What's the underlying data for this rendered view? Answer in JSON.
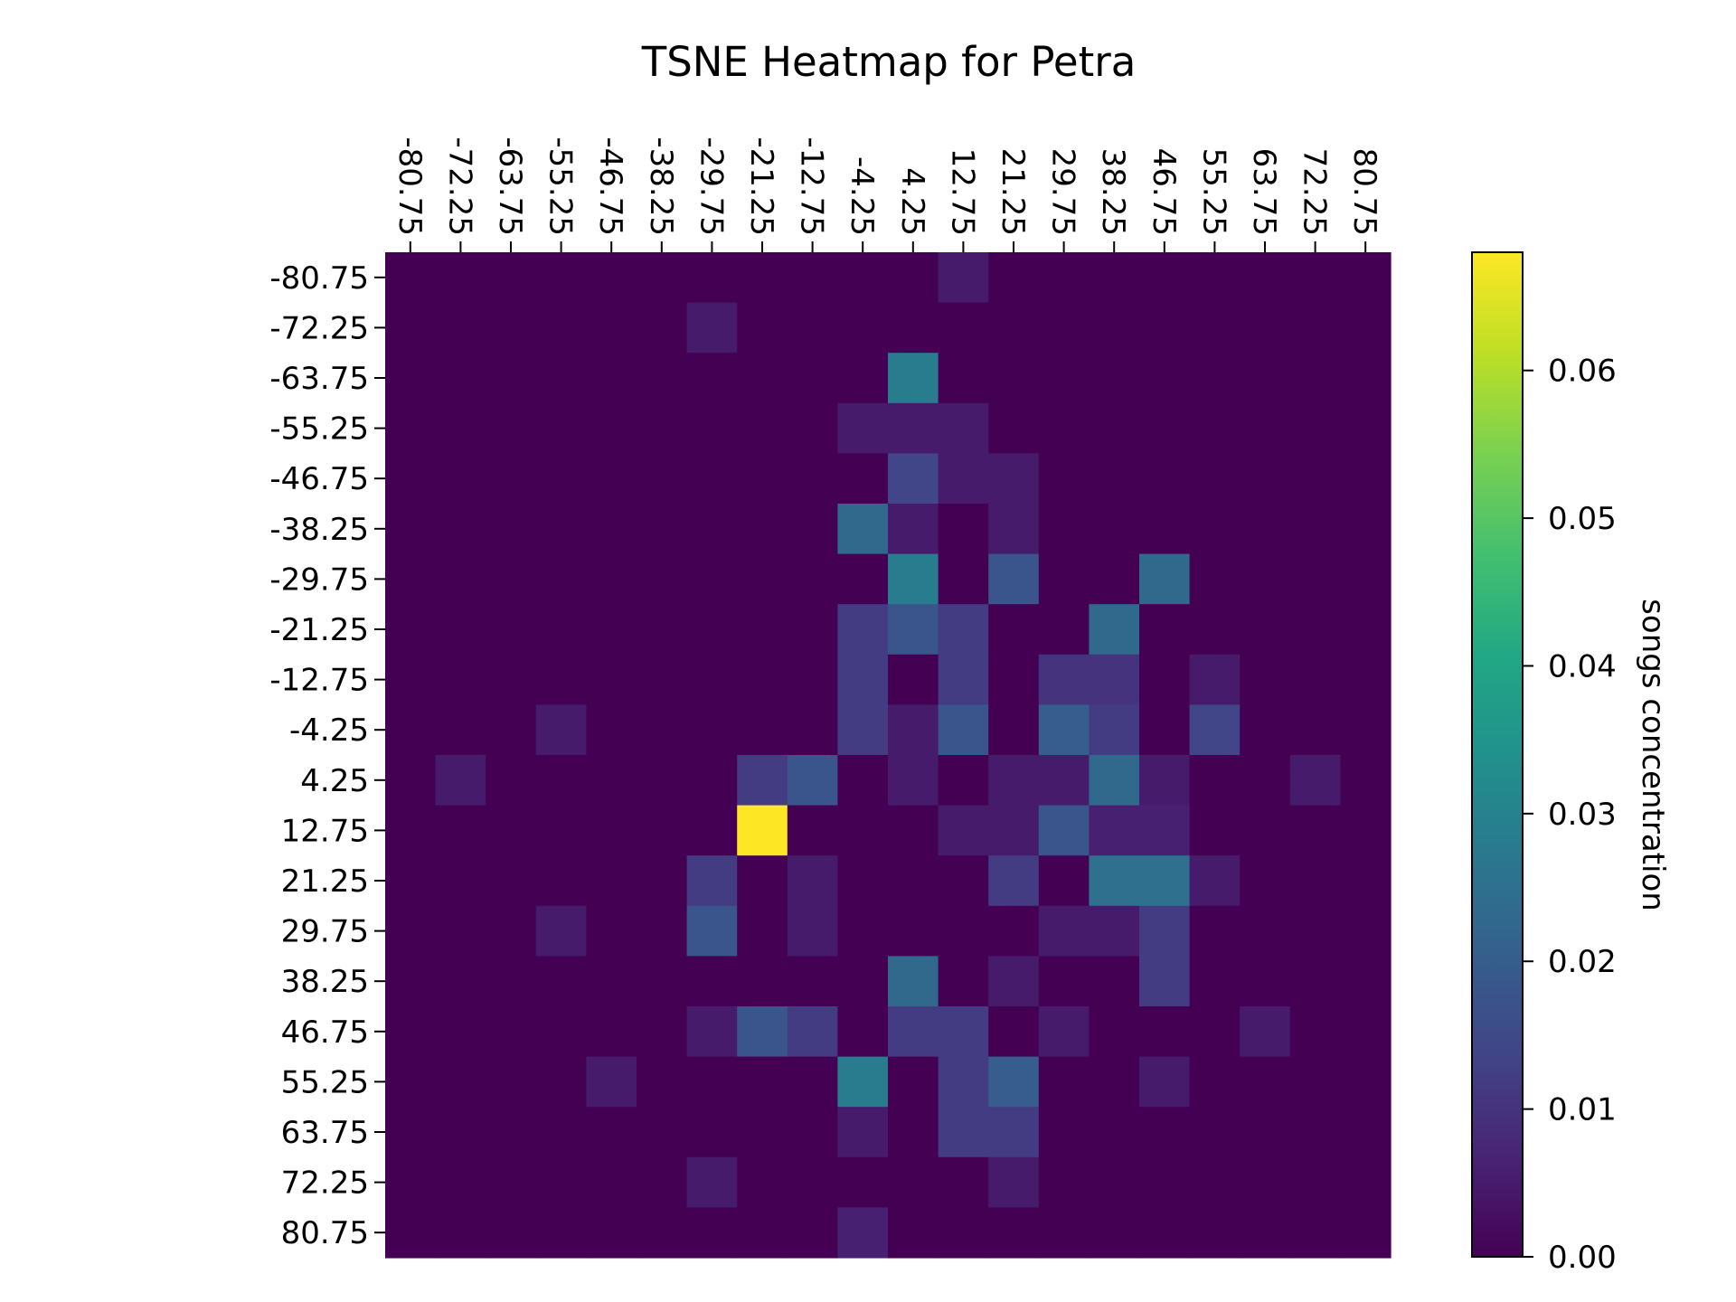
{
  "chart_data": {
    "type": "heatmap",
    "title": "TSNE Heatmap for Petra",
    "x_tick_labels": [
      "-80.75",
      "-72.25",
      "-63.75",
      "-55.25",
      "-46.75",
      "-38.25",
      "-29.75",
      "-21.25",
      "-12.75",
      "-4.25",
      "4.25",
      "12.75",
      "21.25",
      "29.75",
      "38.25",
      "46.75",
      "55.25",
      "63.75",
      "72.25",
      "80.75"
    ],
    "y_tick_labels": [
      "-80.75",
      "-72.25",
      "-63.75",
      "-55.25",
      "-46.75",
      "-38.25",
      "-29.75",
      "-21.25",
      "-12.75",
      "-4.25",
      "4.25",
      "12.75",
      "21.25",
      "29.75",
      "38.25",
      "46.75",
      "55.25",
      "63.75",
      "72.25",
      "80.75"
    ],
    "x_axis_position": "top",
    "colormap": "viridis",
    "colorbar": {
      "label": "songs concentration",
      "range": [
        0,
        0.068
      ],
      "ticks": [
        0,
        0.01,
        0.02,
        0.03,
        0.04,
        0.05,
        0.06
      ],
      "tick_labels": [
        "0.00",
        "0.01",
        "0.02",
        "0.03",
        "0.04",
        "0.05",
        "0.06"
      ]
    },
    "values": [
      [
        0,
        0,
        0,
        0,
        0,
        0,
        0,
        0,
        0,
        0,
        0,
        0.005,
        0,
        0,
        0,
        0,
        0,
        0,
        0,
        0
      ],
      [
        0,
        0,
        0,
        0,
        0,
        0,
        0.005,
        0,
        0,
        0,
        0,
        0,
        0,
        0,
        0,
        0,
        0,
        0,
        0,
        0
      ],
      [
        0,
        0,
        0,
        0,
        0,
        0,
        0,
        0,
        0,
        0,
        0.028,
        0,
        0,
        0,
        0,
        0,
        0,
        0,
        0,
        0
      ],
      [
        0,
        0,
        0,
        0,
        0,
        0,
        0,
        0,
        0,
        0.005,
        0.005,
        0.005,
        0,
        0,
        0,
        0,
        0,
        0,
        0,
        0
      ],
      [
        0,
        0,
        0,
        0,
        0,
        0,
        0,
        0,
        0,
        0,
        0.014,
        0.005,
        0.005,
        0,
        0,
        0,
        0,
        0,
        0,
        0
      ],
      [
        0,
        0,
        0,
        0,
        0,
        0,
        0,
        0,
        0,
        0.023,
        0.005,
        0,
        0.005,
        0,
        0,
        0,
        0,
        0,
        0,
        0
      ],
      [
        0,
        0,
        0,
        0,
        0,
        0,
        0,
        0,
        0,
        0,
        0.028,
        0,
        0.018,
        0,
        0,
        0.023,
        0,
        0,
        0,
        0
      ],
      [
        0,
        0,
        0,
        0,
        0,
        0,
        0,
        0,
        0,
        0.012,
        0.018,
        0.012,
        0,
        0,
        0.023,
        0,
        0,
        0,
        0,
        0
      ],
      [
        0,
        0,
        0,
        0,
        0,
        0,
        0,
        0,
        0,
        0.012,
        0,
        0.012,
        0,
        0.01,
        0.01,
        0,
        0.005,
        0,
        0,
        0
      ],
      [
        0,
        0,
        0,
        0.005,
        0,
        0,
        0,
        0,
        0,
        0.012,
        0.005,
        0.018,
        0,
        0.02,
        0.012,
        0,
        0.014,
        0,
        0,
        0
      ],
      [
        0,
        0.005,
        0,
        0,
        0,
        0,
        0,
        0.012,
        0.018,
        0,
        0.005,
        0,
        0.005,
        0.005,
        0.023,
        0.005,
        0,
        0,
        0.005,
        0
      ],
      [
        0,
        0,
        0,
        0,
        0,
        0,
        0,
        0.068,
        0,
        0,
        0,
        0.005,
        0.005,
        0.018,
        0.006,
        0.006,
        0,
        0,
        0,
        0
      ],
      [
        0,
        0,
        0,
        0,
        0,
        0,
        0.012,
        0,
        0.005,
        0,
        0,
        0,
        0.012,
        0,
        0.025,
        0.025,
        0.005,
        0,
        0,
        0
      ],
      [
        0,
        0,
        0,
        0.005,
        0,
        0,
        0.018,
        0,
        0.005,
        0,
        0,
        0,
        0,
        0.005,
        0.005,
        0.012,
        0,
        0,
        0,
        0
      ],
      [
        0,
        0,
        0,
        0,
        0,
        0,
        0,
        0,
        0,
        0,
        0.023,
        0,
        0.005,
        0,
        0,
        0.012,
        0,
        0,
        0,
        0
      ],
      [
        0,
        0,
        0,
        0,
        0,
        0,
        0.005,
        0.018,
        0.012,
        0,
        0.012,
        0.012,
        0,
        0.005,
        0,
        0,
        0,
        0.005,
        0,
        0
      ],
      [
        0,
        0,
        0,
        0,
        0.005,
        0,
        0,
        0,
        0,
        0.028,
        0,
        0.012,
        0.02,
        0,
        0,
        0.005,
        0,
        0,
        0,
        0
      ],
      [
        0,
        0,
        0,
        0,
        0,
        0,
        0,
        0,
        0,
        0.005,
        0,
        0.012,
        0.012,
        0,
        0,
        0,
        0,
        0,
        0,
        0
      ],
      [
        0,
        0,
        0,
        0,
        0,
        0,
        0.005,
        0,
        0,
        0,
        0,
        0,
        0.005,
        0,
        0,
        0,
        0,
        0,
        0,
        0
      ],
      [
        0,
        0,
        0,
        0,
        0,
        0,
        0,
        0,
        0,
        0.006,
        0,
        0,
        0,
        0,
        0,
        0,
        0,
        0,
        0,
        0
      ]
    ]
  }
}
